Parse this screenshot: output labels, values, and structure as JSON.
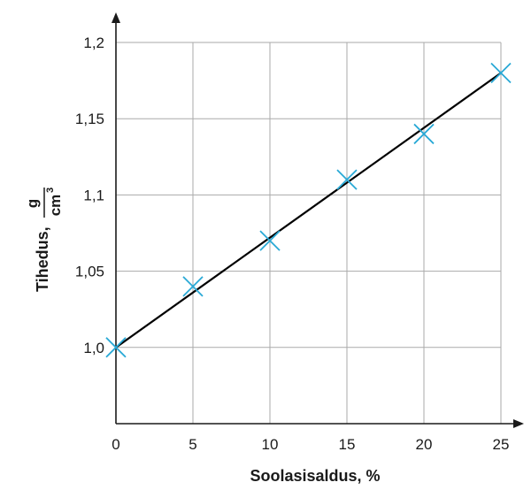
{
  "chart_data": {
    "type": "scatter",
    "xlabel": "Soolasisaldus, %",
    "ylabel": "Tihedus,",
    "yunit": {
      "numerator": "g",
      "denominator": "cm",
      "exponent": "3"
    },
    "xlim": [
      0,
      25
    ],
    "ylim": [
      0.95,
      1.2
    ],
    "x_ticks": [
      "0",
      "5",
      "10",
      "15",
      "20",
      "25"
    ],
    "y_ticks": [
      "1,0",
      "1,05",
      "1,1",
      "1,15",
      "1,2"
    ],
    "grid": true,
    "series": [
      {
        "marker": "cross",
        "x": [
          0,
          5,
          10,
          15,
          20,
          25
        ],
        "y": [
          1.0,
          1.04,
          1.07,
          1.11,
          1.14,
          1.18
        ]
      }
    ],
    "trendline": {
      "x": [
        0,
        25
      ],
      "y": [
        1.0,
        1.18
      ]
    },
    "colors": {
      "marker": "#29a9d6",
      "line": "#000000",
      "grid": "#aaaaaa"
    }
  }
}
